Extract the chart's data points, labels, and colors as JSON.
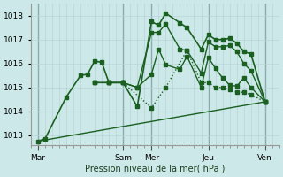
{
  "bg_color": "#cce8e8",
  "grid_color_fine": "#b8d4d4",
  "grid_color_day": "#8aabab",
  "line_color": "#1a6020",
  "title": "Pression niveau de la mer( hPa )",
  "ylim": [
    1012.6,
    1018.5
  ],
  "yticks": [
    1013,
    1014,
    1015,
    1016,
    1017,
    1018
  ],
  "xlim": [
    0,
    35
  ],
  "day_labels": [
    "Mar",
    "Sam",
    "Mer",
    "Jeu",
    "Ven"
  ],
  "day_positions": [
    1,
    13,
    17,
    25,
    33
  ],
  "lines": [
    {
      "x": [
        1,
        2,
        5,
        7,
        8,
        9,
        10,
        11,
        13,
        15,
        17,
        18,
        19,
        21,
        22,
        24,
        25,
        26,
        27,
        28,
        29,
        30,
        31,
        33
      ],
      "y": [
        1012.75,
        1012.85,
        1014.6,
        1015.5,
        1015.55,
        1016.1,
        1016.05,
        1015.2,
        1015.2,
        1014.2,
        1017.75,
        1017.6,
        1018.1,
        1017.7,
        1017.5,
        1016.6,
        1017.2,
        1017.0,
        1017.0,
        1017.05,
        1016.85,
        1016.5,
        1016.4,
        1014.4
      ],
      "style": "-",
      "marker": "s",
      "ms": 2.5,
      "lw": 1.2,
      "zorder": 5
    },
    {
      "x": [
        9,
        11,
        13,
        15,
        17,
        18,
        19,
        21,
        22,
        24,
        25,
        26,
        27,
        28,
        29,
        30,
        31,
        33
      ],
      "y": [
        1015.2,
        1015.2,
        1015.2,
        1015.0,
        1017.3,
        1017.3,
        1017.65,
        1016.6,
        1016.55,
        1015.6,
        1016.9,
        1016.7,
        1016.7,
        1016.75,
        1016.5,
        1016.0,
        1015.7,
        1014.4
      ],
      "style": "-",
      "marker": "s",
      "ms": 2.5,
      "lw": 1.0,
      "zorder": 4
    },
    {
      "x": [
        9,
        11,
        13,
        15,
        17,
        18,
        19,
        21,
        22,
        24,
        25,
        26,
        27,
        28,
        29,
        30,
        31,
        33
      ],
      "y": [
        1015.2,
        1015.2,
        1015.2,
        1015.0,
        1015.55,
        1016.6,
        1015.95,
        1015.75,
        1016.3,
        1015.0,
        1016.25,
        1015.8,
        1015.4,
        1015.1,
        1015.05,
        1015.4,
        1015.0,
        1014.4
      ],
      "style": "-",
      "marker": "s",
      "ms": 2.5,
      "lw": 1.0,
      "zorder": 3
    },
    {
      "x": [
        9,
        11,
        13,
        17,
        19,
        22,
        24,
        25,
        26,
        27,
        28,
        29,
        30,
        31,
        33
      ],
      "y": [
        1015.2,
        1015.2,
        1015.2,
        1014.15,
        1015.0,
        1016.55,
        1015.2,
        1015.2,
        1015.0,
        1015.0,
        1014.9,
        1014.8,
        1014.8,
        1014.7,
        1014.4
      ],
      "style": ":",
      "marker": "s",
      "ms": 2.5,
      "lw": 1.0,
      "zorder": 3
    },
    {
      "x": [
        1,
        33
      ],
      "y": [
        1012.75,
        1014.4
      ],
      "style": "-",
      "marker": null,
      "ms": 0,
      "lw": 1.0,
      "zorder": 2
    }
  ]
}
